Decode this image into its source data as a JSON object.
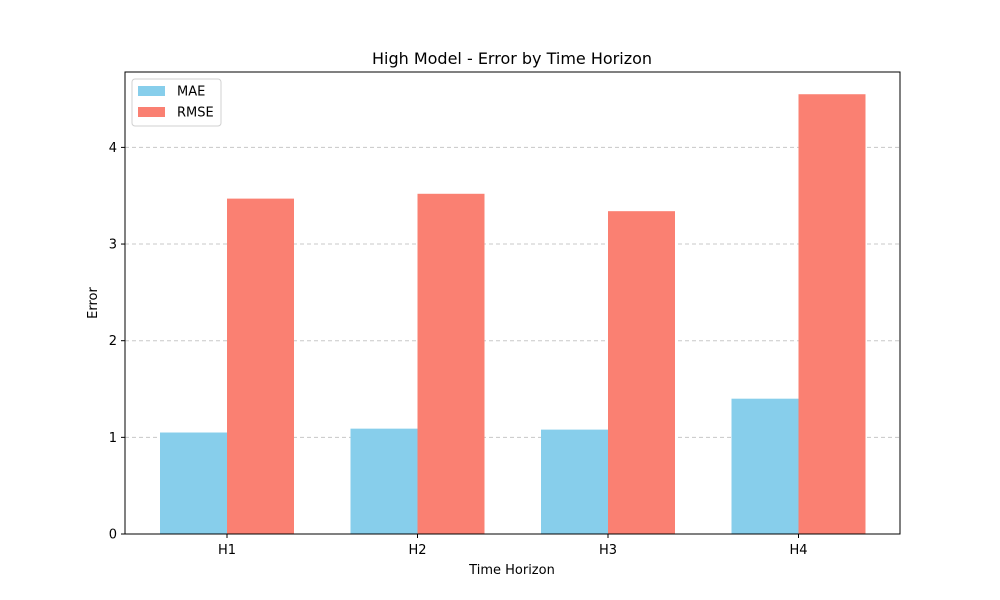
{
  "chart_data": {
    "type": "bar",
    "title": "High Model - Error by Time Horizon",
    "xlabel": "Time Horizon",
    "ylabel": "Error",
    "categories": [
      "H1",
      "H2",
      "H3",
      "H4"
    ],
    "series": [
      {
        "name": "MAE",
        "color": "#87ceeb",
        "values": [
          1.05,
          1.09,
          1.08,
          1.4
        ]
      },
      {
        "name": "RMSE",
        "color": "#fa8072",
        "values": [
          3.47,
          3.52,
          3.34,
          4.55
        ]
      }
    ],
    "ylim": [
      0,
      4.78
    ],
    "yticks": [
      0,
      1,
      2,
      3,
      4
    ],
    "grid": "y-dashed",
    "legend": "top-left"
  }
}
